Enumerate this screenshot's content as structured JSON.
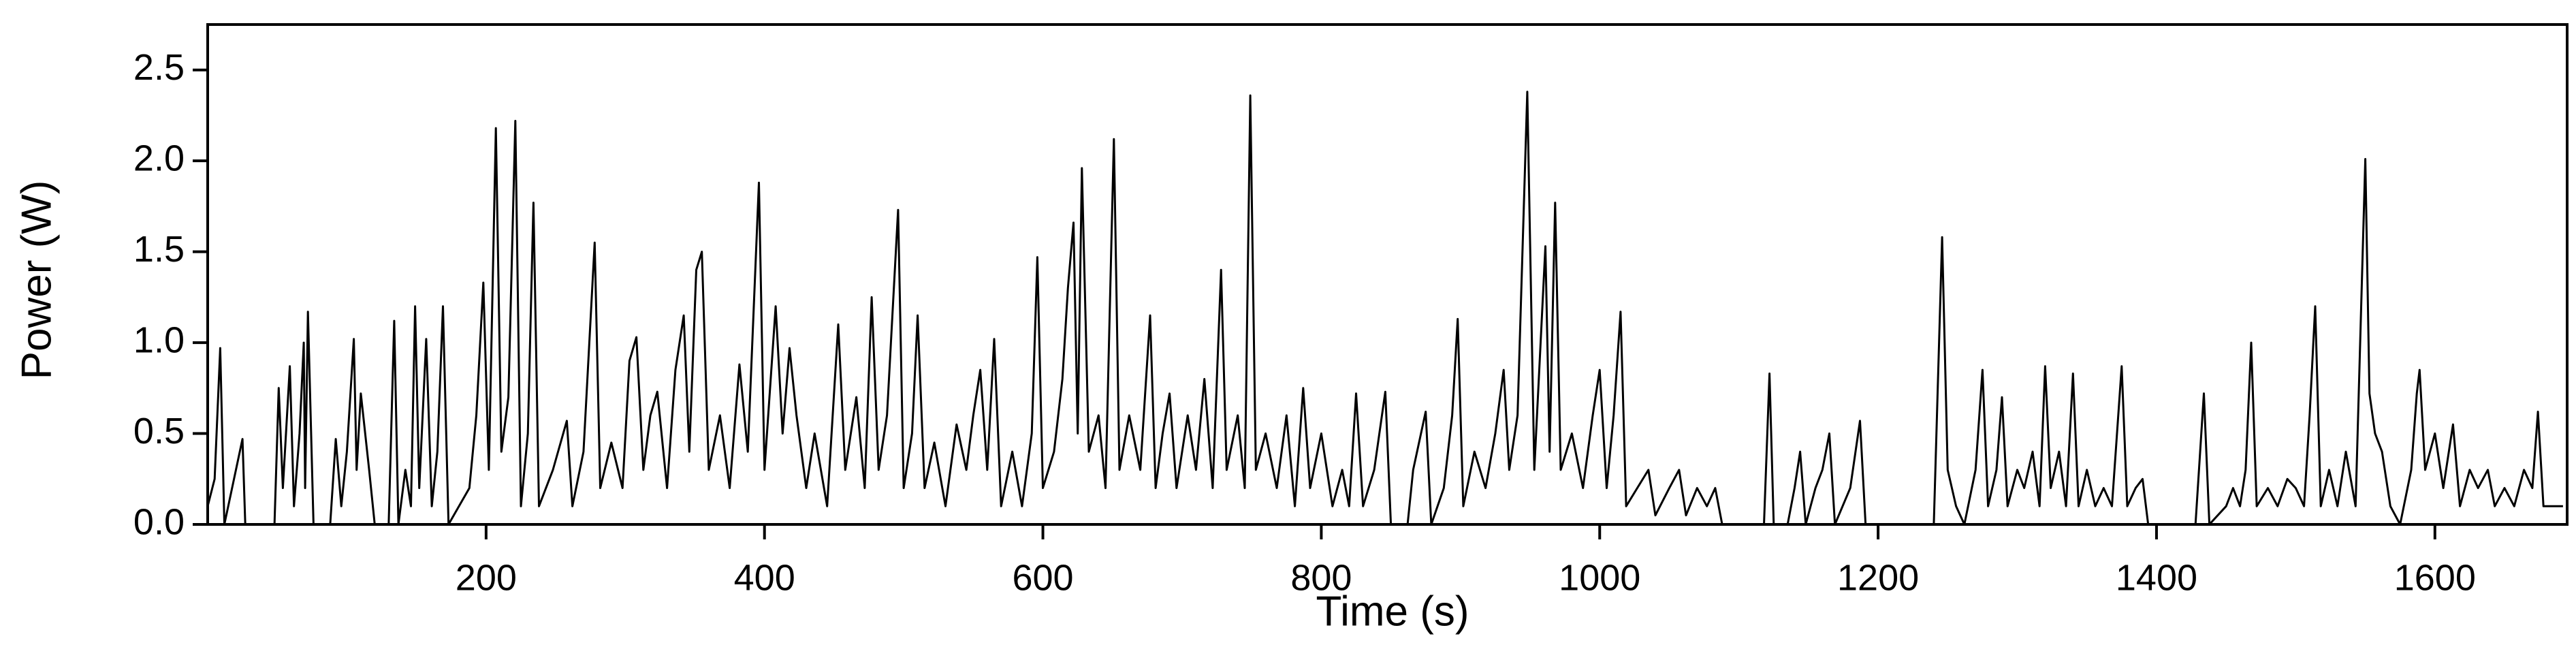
{
  "chart_data": {
    "type": "line",
    "color": "#000000",
    "x_label": "Time (s)",
    "y_label": "Power (W)",
    "xlim": [
      0,
      1695
    ],
    "ylim": [
      0,
      2.75
    ],
    "xticks": [
      200,
      400,
      600,
      800,
      1000,
      1200,
      1400,
      1600
    ],
    "yticks": [
      {
        "value": 0,
        "label": "0.0"
      },
      0.5,
      {
        "value": 1,
        "label": "1.0"
      },
      1.5,
      {
        "value": 2,
        "label": "2.0"
      },
      2.5
    ],
    "x": [
      0,
      5,
      9,
      12,
      25,
      27,
      48,
      51,
      54,
      57,
      59,
      62,
      66,
      69,
      70,
      72,
      76,
      88,
      92,
      96,
      100,
      105,
      107,
      110,
      116,
      120,
      130,
      134,
      137,
      142,
      146,
      149,
      152,
      157,
      161,
      165,
      169,
      173,
      188,
      193,
      198,
      202,
      207,
      211,
      216,
      221,
      225,
      230,
      234,
      238,
      248,
      258,
      262,
      270,
      278,
      282,
      290,
      298,
      303,
      308,
      313,
      318,
      323,
      330,
      336,
      342,
      346,
      351,
      355,
      360,
      368,
      375,
      382,
      388,
      396,
      400,
      408,
      413,
      418,
      423,
      430,
      436,
      445,
      453,
      458,
      466,
      472,
      477,
      482,
      488,
      496,
      500,
      506,
      510,
      515,
      522,
      530,
      538,
      545,
      550,
      555,
      560,
      565,
      570,
      578,
      585,
      592,
      596,
      600,
      608,
      614,
      618,
      622,
      625,
      628,
      633,
      640,
      645,
      651,
      655,
      662,
      670,
      677,
      681,
      686,
      691,
      696,
      704,
      710,
      716,
      722,
      728,
      732,
      740,
      745,
      749,
      753,
      760,
      768,
      775,
      781,
      787,
      792,
      800,
      808,
      815,
      820,
      825,
      830,
      838,
      846,
      850,
      862,
      866,
      875,
      879,
      888,
      894,
      898,
      902,
      910,
      918,
      925,
      931,
      935,
      941,
      948,
      953,
      961,
      964,
      968,
      972,
      980,
      988,
      995,
      1000,
      1005,
      1010,
      1015,
      1019,
      1027,
      1035,
      1040,
      1050,
      1057,
      1062,
      1070,
      1077,
      1083,
      1088,
      1118,
      1122,
      1125,
      1135,
      1140,
      1144,
      1148,
      1155,
      1160,
      1165,
      1169,
      1180,
      1187,
      1191,
      1240,
      1246,
      1250,
      1256,
      1262,
      1270,
      1275,
      1279,
      1285,
      1289,
      1293,
      1300,
      1305,
      1311,
      1316,
      1320,
      1324,
      1330,
      1335,
      1340,
      1344,
      1350,
      1356,
      1362,
      1368,
      1375,
      1379,
      1385,
      1390,
      1394,
      1428,
      1434,
      1438,
      1450,
      1455,
      1460,
      1464,
      1468,
      1472,
      1480,
      1487,
      1494,
      1500,
      1506,
      1510,
      1514,
      1518,
      1524,
      1530,
      1536,
      1543,
      1550,
      1553,
      1557,
      1562,
      1568,
      1575,
      1583,
      1587,
      1589,
      1593,
      1600,
      1606,
      1613,
      1618,
      1625,
      1631,
      1638,
      1643,
      1650,
      1657,
      1664,
      1670,
      1674,
      1678,
      1685,
      1692
    ],
    "values": [
      0.1,
      0.25,
      0.97,
      0,
      0.47,
      0,
      0,
      0.75,
      0.2,
      0.6,
      0.87,
      0.1,
      0.5,
      1.0,
      0.2,
      1.17,
      0,
      0,
      0.47,
      0.1,
      0.4,
      1.02,
      0.3,
      0.72,
      0.3,
      0,
      0,
      1.12,
      0,
      0.3,
      0.1,
      1.2,
      0.2,
      1.02,
      0.1,
      0.4,
      1.2,
      0,
      0.2,
      0.6,
      1.33,
      0.3,
      2.18,
      0.4,
      0.7,
      2.22,
      0.1,
      0.5,
      1.77,
      0.1,
      0.3,
      0.57,
      0.1,
      0.4,
      1.55,
      0.2,
      0.45,
      0.2,
      0.9,
      1.03,
      0.3,
      0.6,
      0.73,
      0.2,
      0.85,
      1.15,
      0.4,
      1.4,
      1.5,
      0.3,
      0.6,
      0.2,
      0.88,
      0.4,
      1.88,
      0.3,
      1.2,
      0.5,
      0.97,
      0.6,
      0.2,
      0.5,
      0.1,
      1.1,
      0.3,
      0.7,
      0.2,
      1.25,
      0.3,
      0.6,
      1.73,
      0.2,
      0.5,
      1.15,
      0.2,
      0.45,
      0.1,
      0.55,
      0.3,
      0.6,
      0.85,
      0.3,
      1.02,
      0.1,
      0.4,
      0.1,
      0.5,
      1.47,
      0.2,
      0.4,
      0.8,
      1.3,
      1.66,
      0.5,
      1.96,
      0.4,
      0.6,
      0.2,
      2.12,
      0.3,
      0.6,
      0.3,
      1.15,
      0.2,
      0.5,
      0.72,
      0.2,
      0.6,
      0.3,
      0.8,
      0.2,
      1.4,
      0.3,
      0.6,
      0.2,
      2.36,
      0.3,
      0.5,
      0.2,
      0.6,
      0.1,
      0.75,
      0.2,
      0.5,
      0.1,
      0.3,
      0.1,
      0.72,
      0.1,
      0.3,
      0.73,
      0,
      0,
      0.3,
      0.62,
      0,
      0.2,
      0.6,
      1.13,
      0.1,
      0.4,
      0.2,
      0.5,
      0.85,
      0.3,
      0.6,
      2.38,
      0.3,
      1.53,
      0.4,
      1.77,
      0.3,
      0.5,
      0.2,
      0.6,
      0.85,
      0.2,
      0.6,
      1.17,
      0.1,
      0.2,
      0.3,
      0.05,
      0.2,
      0.3,
      0.05,
      0.2,
      0.1,
      0.2,
      0,
      0,
      0.83,
      0,
      0,
      0.2,
      0.4,
      0,
      0.2,
      0.3,
      0.5,
      0,
      0.2,
      0.57,
      0,
      0,
      1.58,
      0.3,
      0.1,
      0,
      0.3,
      0.85,
      0.1,
      0.3,
      0.7,
      0.1,
      0.3,
      0.2,
      0.4,
      0.1,
      0.87,
      0.2,
      0.4,
      0.1,
      0.83,
      0.1,
      0.3,
      0.1,
      0.2,
      0.1,
      0.87,
      0.1,
      0.2,
      0.25,
      0,
      0,
      0.72,
      0,
      0.1,
      0.2,
      0.1,
      0.3,
      1.0,
      0.1,
      0.2,
      0.1,
      0.25,
      0.2,
      0.1,
      0.6,
      1.2,
      0.1,
      0.3,
      0.1,
      0.4,
      0.1,
      2.01,
      0.72,
      0.5,
      0.4,
      0.1,
      0,
      0.3,
      0.72,
      0.85,
      0.3,
      0.5,
      0.2,
      0.55,
      0.1,
      0.3,
      0.2,
      0.3,
      0.1,
      0.2,
      0.1,
      0.3,
      0.2,
      0.62,
      0.1,
      0.1,
      0.1
    ]
  }
}
